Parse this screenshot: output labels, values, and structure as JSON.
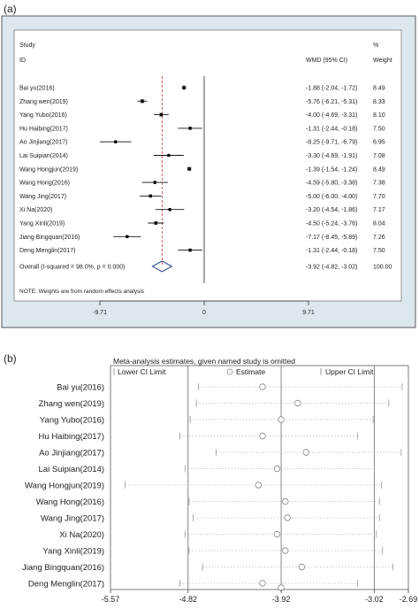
{
  "panel_a": {
    "label": "(a)",
    "header": {
      "study": "Study",
      "id": "ID",
      "effect": "WMD (95% CI)",
      "pct": "%",
      "weight": "Weight"
    },
    "note": "NOTE: Weights are from random effects analysis",
    "chart_data": {
      "type": "forest",
      "xticks": [
        -9.71,
        0,
        9.71
      ],
      "xtick_labels": [
        "-9.71",
        "0",
        "9.71"
      ],
      "xlim": [
        -9.71,
        9.71
      ],
      "pooled_line": -3.92,
      "studies": [
        {
          "name": "Bai yu(2016)",
          "est": -1.88,
          "lo": -2.04,
          "hi": -1.72,
          "ci_text": "-1.88 (-2.04, -1.72)",
          "weight": "8.49"
        },
        {
          "name": "Zhang wen(2019)",
          "est": -5.76,
          "lo": -6.21,
          "hi": -5.31,
          "ci_text": "-5.76 (-6.21, -5.31)",
          "weight": "8.33"
        },
        {
          "name": "Yang Yubo(2016)",
          "est": -4.0,
          "lo": -4.69,
          "hi": -3.31,
          "ci_text": "-4.00 (-4.69, -3.31)",
          "weight": "8.10"
        },
        {
          "name": "Hu Haibing(2017)",
          "est": -1.31,
          "lo": -2.44,
          "hi": -0.18,
          "ci_text": "-1.31 (-2.44, -0.18)",
          "weight": "7.50"
        },
        {
          "name": "Ao Jinjiang(2017)",
          "est": -8.25,
          "lo": -9.71,
          "hi": -6.79,
          "ci_text": "-8.25 (-9.71, -6.79)",
          "weight": "6.95"
        },
        {
          "name": "Lai Suipian(2014)",
          "est": -3.3,
          "lo": -4.69,
          "hi": -1.91,
          "ci_text": "-3.30 (-4.69, -1.91)",
          "weight": "7.08"
        },
        {
          "name": "Wang Hongjun(2019)",
          "est": -1.39,
          "lo": -1.54,
          "hi": -1.24,
          "ci_text": "-1.39 (-1.54, -1.24)",
          "weight": "8.49"
        },
        {
          "name": "Wang Hong(2016)",
          "est": -4.59,
          "lo": -5.8,
          "hi": -3.38,
          "ci_text": "-4.59 (-5.80, -3.38)",
          "weight": "7.38"
        },
        {
          "name": "Wang Jing(2017)",
          "est": -5.0,
          "lo": -6.0,
          "hi": -4.0,
          "ci_text": "-5.00 (-6.00, -4.00)",
          "weight": "7.70"
        },
        {
          "name": "Xi Na(2020)",
          "est": -3.2,
          "lo": -4.54,
          "hi": -1.86,
          "ci_text": "-3.20 (-4.54, -1.86)",
          "weight": "7.17"
        },
        {
          "name": "Yang Xinli(2019)",
          "est": -4.5,
          "lo": -5.24,
          "hi": -3.76,
          "ci_text": "-4.50 (-5.24, -3.76)",
          "weight": "8.04"
        },
        {
          "name": "Jiang Bingquan(2016)",
          "est": -7.17,
          "lo": -8.45,
          "hi": -5.89,
          "ci_text": "-7.17 (-8.45, -5.89)",
          "weight": "7.26"
        },
        {
          "name": "Deng Menglin(2017)",
          "est": -1.31,
          "lo": -2.44,
          "hi": -0.18,
          "ci_text": "-1.31 (-2.44, -0.18)",
          "weight": "7.50"
        }
      ],
      "overall": {
        "name": "Overall  (I-squared = 98.0%, p = 0.000)",
        "est": -3.92,
        "lo": -4.82,
        "hi": -3.02,
        "ci_text": "-3.92 (-4.82, -3.02)",
        "weight": "100.00"
      }
    }
  },
  "panel_b": {
    "label": "(b)",
    "title": "Meta-analysis estimates, given named study is omitted",
    "legend": {
      "lower": "Lower CI Limit",
      "estimate": "Estimate",
      "upper": "Upper CI Limit"
    },
    "chart_data": {
      "type": "sensitivity",
      "xticks": [
        -5.57,
        -4.82,
        -3.92,
        -3.02,
        -2.69
      ],
      "xtick_labels": [
        "-5.57",
        "-4.82",
        "-3.92",
        "-3.02",
        "-2.69"
      ],
      "xlim": [
        -5.57,
        -2.69
      ],
      "ref_lines": [
        -4.82,
        -3.92,
        -3.02
      ],
      "studies": [
        {
          "name": "Bai yu(2016)",
          "lo": -4.72,
          "est": -4.1,
          "hi": -2.75
        },
        {
          "name": "Zhang wen(2019)",
          "lo": -4.74,
          "est": -3.76,
          "hi": -2.88
        },
        {
          "name": "Yang Yubo(2016)",
          "lo": -4.8,
          "est": -3.92,
          "hi": -3.03
        },
        {
          "name": "Hu Haibing(2017)",
          "lo": -4.9,
          "est": -4.1,
          "hi": -3.18
        },
        {
          "name": "Ao Jinjiang(2017)",
          "lo": -4.55,
          "est": -3.68,
          "hi": -2.76
        },
        {
          "name": "Lai Suipian(2014)",
          "lo": -4.85,
          "est": -3.96,
          "hi": -3.02
        },
        {
          "name": "Wang Hongjun(2019)",
          "lo": -5.43,
          "est": -4.14,
          "hi": -2.95
        },
        {
          "name": "Wang Hong(2016)",
          "lo": -4.81,
          "est": -3.88,
          "hi": -2.97
        },
        {
          "name": "Wang Jing(2017)",
          "lo": -4.77,
          "est": -3.86,
          "hi": -2.97
        },
        {
          "name": "Xi Na(2020)",
          "lo": -4.85,
          "est": -3.96,
          "hi": -3.0
        },
        {
          "name": "Yang Xinli(2019)",
          "lo": -4.81,
          "est": -3.88,
          "hi": -2.94
        },
        {
          "name": "Jiang Bingquan(2016)",
          "lo": -4.68,
          "est": -3.72,
          "hi": -2.84
        },
        {
          "name": "Deng Menglin(2017)",
          "lo": -4.9,
          "est": -4.1,
          "hi": -3.18
        }
      ],
      "bottom_marker": -3.92
    }
  }
}
